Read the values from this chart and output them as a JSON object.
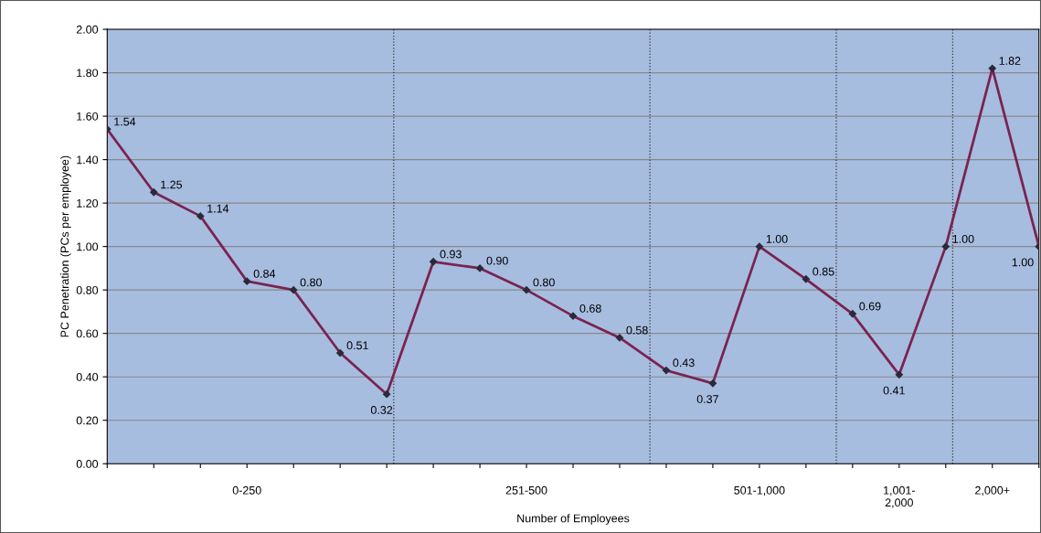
{
  "chart_data": {
    "type": "line",
    "xlabel": "Number of Employees",
    "ylabel": "PC Penetration (PCs per employee)",
    "categories": [
      null,
      null,
      null,
      "0-250",
      null,
      null,
      null,
      null,
      null,
      "251-500",
      null,
      null,
      null,
      null,
      "501-1,000",
      null,
      null,
      "1,001-\n2,000",
      null,
      "2,000+",
      null
    ],
    "series": [
      {
        "color": "#7b2350",
        "values": [
          1.54,
          1.25,
          1.14,
          0.84,
          0.8,
          0.51,
          0.32,
          0.93,
          0.9,
          0.8,
          0.68,
          0.58,
          0.43,
          0.37,
          1.0,
          0.85,
          0.69,
          0.41,
          1.0,
          1.82,
          1.0
        ],
        "value_labels": [
          "1.54",
          "1.25",
          "1.14",
          "0.84",
          "0.80",
          "0.51",
          "0.32",
          "0.93",
          "0.90",
          "0.80",
          "0.68",
          "0.58",
          "0.43",
          "0.37",
          "1.00",
          "0.85",
          "0.69",
          "0.41",
          "1.00",
          "1.82",
          "1.00"
        ]
      }
    ],
    "ylim": [
      0,
      2
    ],
    "yticks": [
      {
        "value": 0,
        "label": "0.00"
      },
      {
        "value": 0.2,
        "label": "0.20"
      },
      {
        "value": 0.4,
        "label": "0.40"
      },
      {
        "value": 0.6,
        "label": "0.60"
      },
      {
        "value": 0.8,
        "label": "0.80"
      },
      {
        "value": 1.0,
        "label": "1.00"
      },
      {
        "value": 1.2,
        "label": "1.20"
      },
      {
        "value": 1.4,
        "label": "1.40"
      },
      {
        "value": 1.6,
        "label": "1.60"
      },
      {
        "value": 1.8,
        "label": "1.80"
      },
      {
        "value": 2.0,
        "label": "2.00"
      }
    ],
    "grid": "y",
    "marker": "diamond",
    "line_style": "solid",
    "legend": false
  }
}
